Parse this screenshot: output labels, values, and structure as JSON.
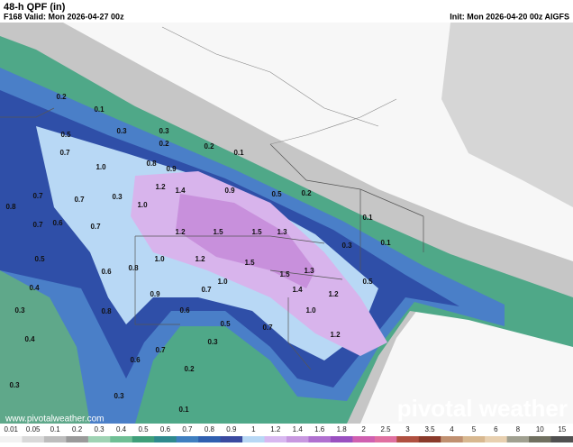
{
  "header": {
    "title": "48-h QPF (in)",
    "valid": "F168 Valid: Mon 2026-04-27 00z",
    "init": "Init: Mon 2026-04-20 00z AIGFS"
  },
  "map_labels": [
    "0.2",
    "0.1",
    "0.3",
    "0.3",
    "0.2",
    "0.2",
    "0.1",
    "0.5",
    "0.7",
    "1.0",
    "0.8",
    "0.9",
    "0.7",
    "0.8",
    "0.7",
    "0.3",
    "1.0",
    "1.2",
    "1.4",
    "0.9",
    "0.5",
    "0.2",
    "0.1",
    "0.7",
    "0.6",
    "0.7",
    "1.2",
    "1.5",
    "1.5",
    "1.3",
    "0.3",
    "0.1",
    "0.5",
    "0.6",
    "0.8",
    "1.0",
    "1.2",
    "1.5",
    "1.5",
    "1.3",
    "0.5",
    "0.4",
    "0.9",
    "0.7",
    "1.0",
    "1.4",
    "1.2",
    "0.3",
    "0.8",
    "0.6",
    "0.5",
    "0.7",
    "1.0",
    "1.2",
    "0.4",
    "0.7",
    "0.3",
    "0.6",
    "0.2",
    "0.3",
    "0.3",
    "0.1"
  ],
  "website": "www.pivotalweather.com",
  "logo": "pivotal weather",
  "colorbar": {
    "labels": [
      "0.01",
      "0.05",
      "0.1",
      "0.2",
      "0.3",
      "0.4",
      "0.5",
      "0.6",
      "0.7",
      "0.8",
      "0.9",
      "1",
      "1.2",
      "1.4",
      "1.6",
      "1.8",
      "2",
      "2.5",
      "3",
      "3.5",
      "4",
      "5",
      "6",
      "8",
      "10",
      "15"
    ],
    "colors": [
      "#f2f2f2",
      "#d9d9d9",
      "#bdbdbd",
      "#9a9a9a",
      "#9fd3b4",
      "#6fbf95",
      "#3f9f7a",
      "#2f8a8e",
      "#3f7fc0",
      "#2f5fb0",
      "#3a4aa0",
      "#b8d8f5",
      "#d8b8f0",
      "#c898e0",
      "#b070d0",
      "#9a50c0",
      "#d060b0",
      "#e070a0",
      "#b05040",
      "#8a3a2a",
      "#c09070",
      "#d8b890",
      "#e8d0b0",
      "#a0a090",
      "#707060",
      "#505050"
    ]
  }
}
